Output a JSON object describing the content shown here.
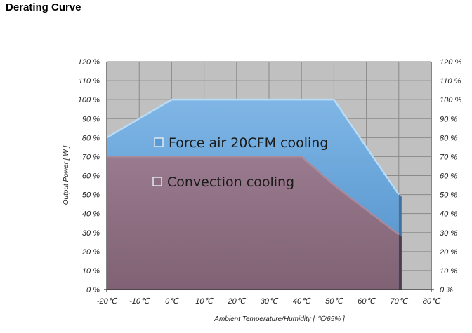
{
  "header": {
    "title": "Derating Curve"
  },
  "chart_data": {
    "type": "area",
    "title": "",
    "xlabel": "Ambient Temperature/Humidity [ ℃/65% ]",
    "ylabel": "Output Power [ W ]",
    "x_ticks": [
      "-20℃",
      "-10℃",
      "0℃",
      "10℃",
      "20℃",
      "30℃",
      "40℃",
      "50℃",
      "60℃",
      "70℃",
      "80℃"
    ],
    "y_ticks": [
      "0 %",
      "10 %",
      "20 %",
      "30 %",
      "40 %",
      "50 %",
      "60 %",
      "70 %",
      "80 %",
      "90 %",
      "100 %",
      "110 %",
      "120 %"
    ],
    "xlim": [
      -20,
      80
    ],
    "ylim": [
      0,
      120
    ],
    "grid": true,
    "plot_color": "#c0c0c0",
    "series": [
      {
        "name": "Force air 20CFM cooling",
        "color": "#5b9bd5",
        "points": [
          [
            -20,
            80
          ],
          [
            0,
            100
          ],
          [
            50,
            100
          ],
          [
            70,
            50
          ]
        ]
      },
      {
        "name": "Convection cooling",
        "color": "#8e6f82",
        "points": [
          [
            -20,
            70
          ],
          [
            40,
            70
          ],
          [
            50,
            55
          ],
          [
            70,
            29
          ]
        ]
      }
    ]
  }
}
